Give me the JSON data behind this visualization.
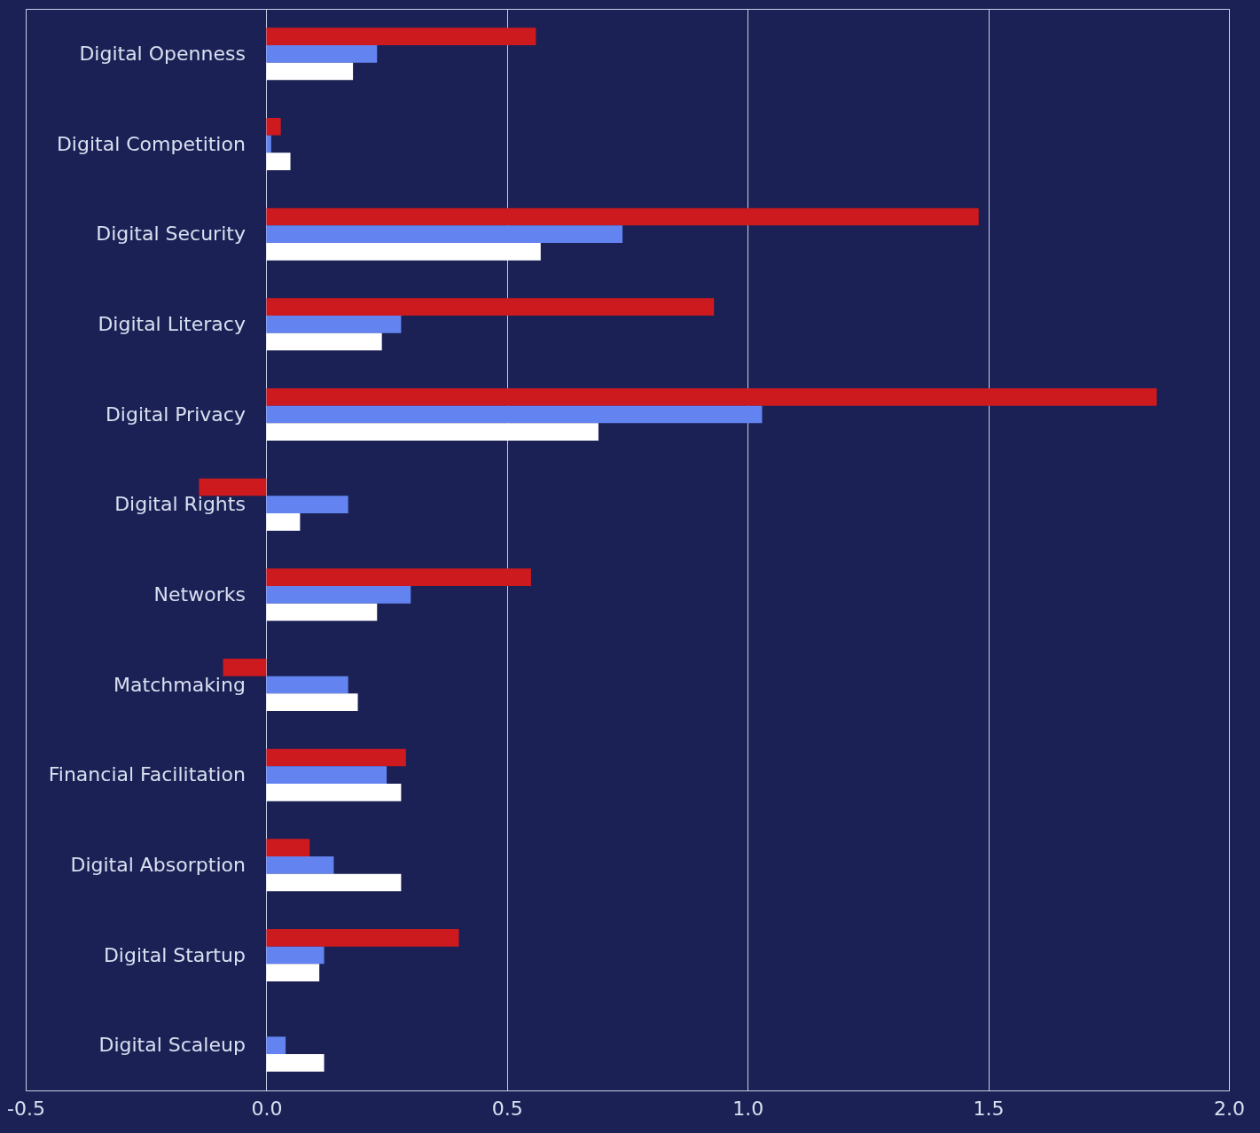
{
  "chart_data": {
    "type": "bar",
    "orientation": "horizontal",
    "categories": [
      "Digital Openness",
      "Digital Competition",
      "Digital Security",
      "Digital Literacy",
      "Digital Privacy",
      "Digital Rights",
      "Networks",
      "Matchmaking",
      "Financial Facilitation",
      "Digital Absorption",
      "Digital Startup",
      "Digital Scaleup"
    ],
    "series": [
      {
        "color": "#cc1a1f",
        "values": [
          0.56,
          0.03,
          1.48,
          0.93,
          1.85,
          -0.14,
          0.55,
          -0.09,
          0.29,
          0.09,
          0.4,
          null
        ]
      },
      {
        "color": "#6383f0",
        "values": [
          0.23,
          0.01,
          0.74,
          0.28,
          1.03,
          0.17,
          0.3,
          0.17,
          0.25,
          0.14,
          0.12,
          0.04
        ]
      },
      {
        "color": "#ffffff",
        "values": [
          0.18,
          0.05,
          0.57,
          0.24,
          0.69,
          0.07,
          0.23,
          0.19,
          0.28,
          0.28,
          0.11,
          0.12
        ]
      }
    ],
    "xlim": [
      -0.5,
      2.0
    ],
    "xticks": [
      {
        "value": -0.5,
        "label": "-0.5"
      },
      {
        "value": 0,
        "label": "0.0"
      },
      {
        "value": 0.5,
        "label": "0.5"
      },
      {
        "value": 1,
        "label": "1.0"
      },
      {
        "value": 1.5,
        "label": "1.5"
      },
      {
        "value": 2,
        "label": "2.0"
      }
    ],
    "grid": "x"
  }
}
